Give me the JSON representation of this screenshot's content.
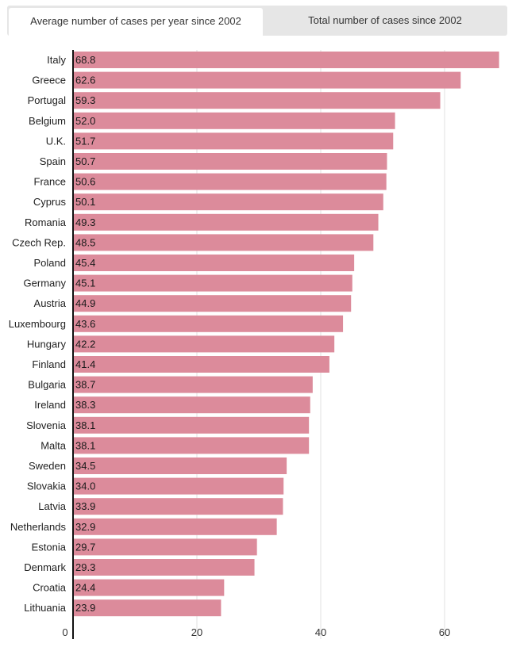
{
  "tabs": [
    {
      "label": "Average number of cases per year since 2002",
      "active": true
    },
    {
      "label": "Total number of cases since 2002",
      "active": false
    }
  ],
  "colors": {
    "bar": "#dc8b9b",
    "axis": "#111111",
    "grid": "#e2e2e2",
    "tab_bg": "#e6e6e6",
    "tab_active_bg": "#ffffff"
  },
  "chart_data": {
    "type": "bar",
    "orientation": "horizontal",
    "title": "",
    "xlabel": "",
    "ylabel": "",
    "categories": [
      "Italy",
      "Greece",
      "Portugal",
      "Belgium",
      "U.K.",
      "Spain",
      "France",
      "Cyprus",
      "Romania",
      "Czech Rep.",
      "Poland",
      "Germany",
      "Austria",
      "Luxembourg",
      "Hungary",
      "Finland",
      "Bulgaria",
      "Ireland",
      "Slovenia",
      "Malta",
      "Sweden",
      "Slovakia",
      "Latvia",
      "Netherlands",
      "Estonia",
      "Denmark",
      "Croatia",
      "Lithuania"
    ],
    "values": [
      68.8,
      62.6,
      59.3,
      52.0,
      51.7,
      50.7,
      50.6,
      50.1,
      49.3,
      48.5,
      45.4,
      45.1,
      44.9,
      43.6,
      42.2,
      41.4,
      38.7,
      38.3,
      38.1,
      38.1,
      34.5,
      34.0,
      33.9,
      32.9,
      29.7,
      29.3,
      24.4,
      23.9
    ],
    "value_labels": [
      "68.8",
      "62.6",
      "59.3",
      "52.0",
      "51.7",
      "50.7",
      "50.6",
      "50.1",
      "49.3",
      "48.5",
      "45.4",
      "45.1",
      "44.9",
      "43.6",
      "42.2",
      "41.4",
      "38.7",
      "38.3",
      "38.1",
      "38.1",
      "34.5",
      "34.0",
      "33.9",
      "32.9",
      "29.7",
      "29.3",
      "24.4",
      "23.9"
    ],
    "xlim": [
      0,
      70
    ],
    "xticks": [
      0,
      20,
      40,
      60
    ],
    "xtick_labels": [
      "0",
      "20",
      "40",
      "60"
    ],
    "grid": true
  }
}
